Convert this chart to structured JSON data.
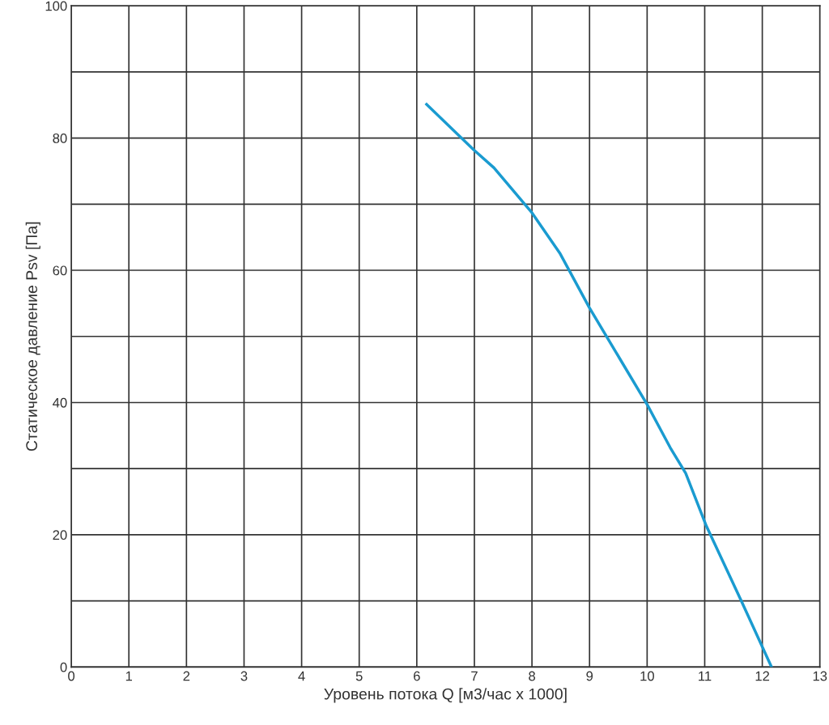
{
  "chart_data": {
    "type": "line",
    "xlabel": "Уровень потока Q [м3/час x 1000]",
    "ylabel": "Статическое давление Psv [Па]",
    "xlim": [
      0,
      13
    ],
    "ylim": [
      0,
      100
    ],
    "xticks": [
      0,
      1,
      2,
      3,
      4,
      5,
      6,
      7,
      8,
      9,
      10,
      11,
      12,
      13
    ],
    "yticks": [
      0,
      {
        "value": 10,
        "label": null
      },
      20,
      {
        "value": 30,
        "label": null
      },
      40,
      {
        "value": 50,
        "label": null
      },
      60,
      {
        "value": 70,
        "label": null
      },
      80,
      {
        "value": 90,
        "label": null
      },
      100
    ],
    "grid": true,
    "marker": "none",
    "line_style": "solid",
    "series": [
      {
        "color": "#1a9bd0",
        "x": [
          6.17,
          6.99,
          7.34,
          8.0,
          8.49,
          9.0,
          10.0,
          10.4,
          10.67,
          11.03,
          11.62,
          12.16
        ],
        "values": [
          85.1,
          78.2,
          75.5,
          68.7,
          62.5,
          54.3,
          39.7,
          33.2,
          29.3,
          21.3,
          10.3,
          0
        ]
      }
    ]
  }
}
